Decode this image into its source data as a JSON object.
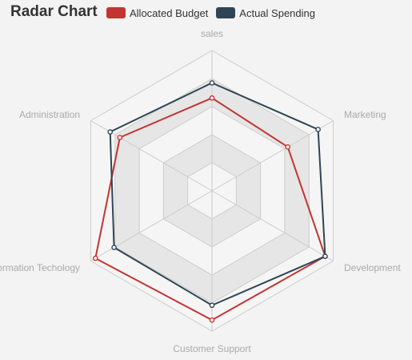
{
  "chart_data": {
    "type": "radar",
    "title": "Radar Chart",
    "indicators": [
      {
        "name": "sales",
        "max": 6500
      },
      {
        "name": "Marketing",
        "max": 16000
      },
      {
        "name": "Development",
        "max": 30000
      },
      {
        "name": "Customer Support",
        "max": 38000
      },
      {
        "name": "Information Techology",
        "max": 52000
      },
      {
        "name": "Administration",
        "max": 25000
      }
    ],
    "series": [
      {
        "name": "Allocated Budget",
        "color": "#c23531",
        "values": [
          4300,
          10000,
          28000,
          35000,
          50000,
          19000
        ]
      },
      {
        "name": "Actual Spending",
        "color": "#2f4554",
        "values": [
          5000,
          14000,
          28000,
          31000,
          42000,
          21000
        ]
      }
    ],
    "legend_position": "top",
    "split_number": 5
  }
}
